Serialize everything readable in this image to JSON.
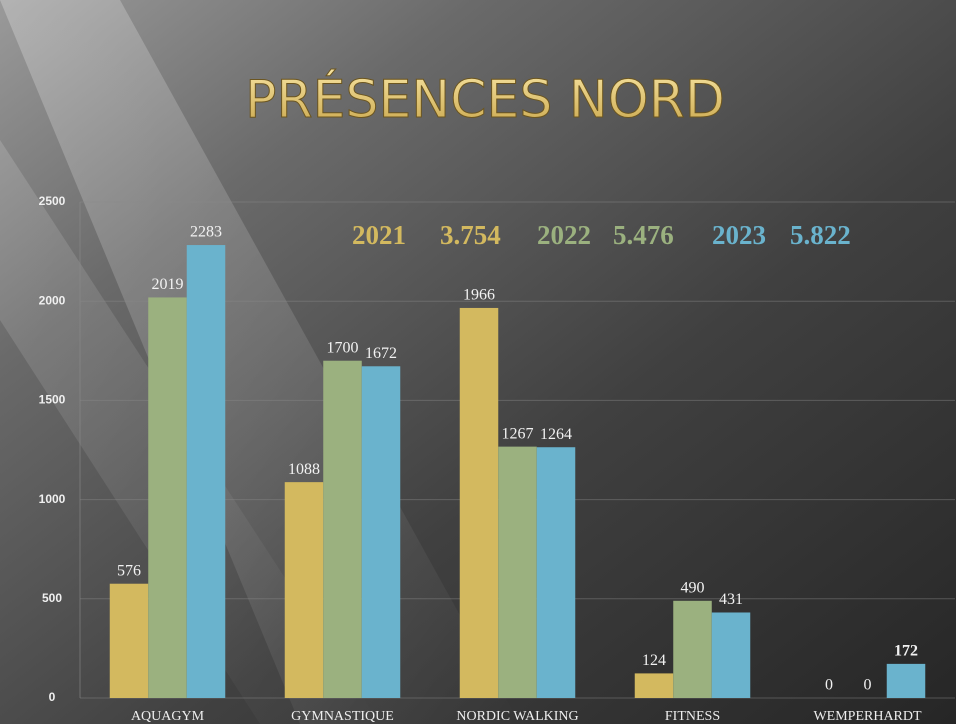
{
  "chart_data": {
    "type": "bar",
    "title": "PRÉSENCES NORD",
    "categories": [
      "AQUAGYM",
      "GYMNASTIQUE",
      "NORDIC WALKING",
      "FITNESS",
      "WEMPERHARDT"
    ],
    "series": [
      {
        "name": "2021",
        "total_label": "3.754",
        "color": "#d3b95f",
        "values": [
          576,
          1088,
          1966,
          124,
          0
        ]
      },
      {
        "name": "2022",
        "total_label": "5.476",
        "color": "#9bb17f",
        "values": [
          2019,
          1700,
          1267,
          490,
          0
        ]
      },
      {
        "name": "2023",
        "total_label": "5.822",
        "color": "#6ab3cd",
        "values": [
          2283,
          1672,
          1264,
          431,
          172
        ]
      }
    ],
    "ylim": [
      0,
      2500
    ],
    "yticks": [
      0,
      500,
      1000,
      1500,
      2000,
      2500
    ],
    "grid": true
  }
}
